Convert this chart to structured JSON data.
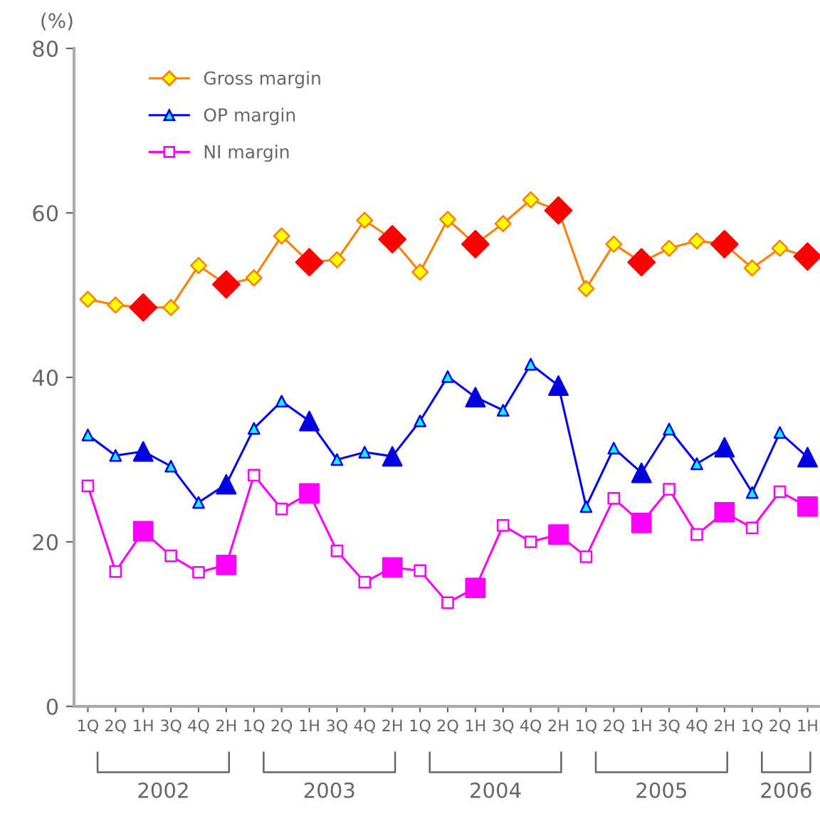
{
  "chart_data": {
    "type": "line",
    "ylabel": "(%)",
    "ylim": [
      0,
      80
    ],
    "yticks": [
      0,
      20,
      40,
      60,
      80
    ],
    "grid": false,
    "legend": "top left",
    "categories": [
      "1Q",
      "2Q",
      "1H",
      "3Q",
      "4Q",
      "2H",
      "1Q",
      "2Q",
      "1H",
      "3Q",
      "4Q",
      "2H",
      "1Q",
      "2Q",
      "1H",
      "3Q",
      "4Q",
      "2H",
      "1Q",
      "2Q",
      "1H",
      "3Q",
      "4Q",
      "2H",
      "1Q",
      "2Q",
      "1H"
    ],
    "annotations": [
      "2002",
      "2003",
      "2004",
      "2005",
      "2006"
    ],
    "series": [
      {
        "name": "Gross margin",
        "color": "#ff8000",
        "marker": "diamond",
        "values": [
          49.5,
          48.8,
          48.5,
          48.5,
          53.6,
          51.3,
          52.1,
          57.2,
          54.0,
          54.3,
          59.1,
          56.8,
          52.8,
          59.2,
          56.2,
          58.7,
          61.6,
          60.3,
          50.8,
          56.2,
          54.0,
          55.7,
          56.6,
          56.2,
          53.3,
          55.7,
          54.7
        ],
        "colors": [
          "#ffff00",
          "#ffff00",
          "#ff0000",
          "#ffff00",
          "#ffff00",
          "#ff0000",
          "#ffff00",
          "#ffff00",
          "#ff0000",
          "#ffff00",
          "#ffff00",
          "#ff0000",
          "#ffff00",
          "#ffff00",
          "#ff0000",
          "#ffff00",
          "#ffff00",
          "#ff0000",
          "#ffff00",
          "#ffff00",
          "#ff0000",
          "#ffff00",
          "#ffff00",
          "#ff0000",
          "#ffff00",
          "#ffff00",
          "#ff0000"
        ]
      },
      {
        "name": "OP margin",
        "color": "#0000ff",
        "marker": "triangle",
        "values": [
          33.0,
          30.5,
          31.0,
          29.2,
          24.8,
          27.0,
          33.8,
          37.1,
          34.7,
          30.0,
          30.9,
          30.4,
          34.7,
          40.1,
          37.6,
          36.0,
          41.6,
          39.0,
          24.3,
          31.4,
          28.4,
          33.7,
          29.5,
          31.5,
          26.0,
          33.3,
          30.3
        ],
        "colors": [
          "#00ffff",
          "#00ffff",
          "#0000e0",
          "#00ffff",
          "#00ffff",
          "#0000e0",
          "#00ffff",
          "#00ffff",
          "#0000e0",
          "#00ffff",
          "#00ffff",
          "#0000e0",
          "#00ffff",
          "#00ffff",
          "#0000e0",
          "#00ffff",
          "#00ffff",
          "#0000e0",
          "#00ffff",
          "#00ffff",
          "#0000e0",
          "#00ffff",
          "#00ffff",
          "#0000e0",
          "#00ffff",
          "#00ffff",
          "#0000e0"
        ]
      },
      {
        "name": "NI margin",
        "color": "#ff00ff",
        "marker": "square",
        "values": [
          26.8,
          16.4,
          21.3,
          18.3,
          16.3,
          17.2,
          28.1,
          24.0,
          25.9,
          18.9,
          15.1,
          16.9,
          16.5,
          12.6,
          14.4,
          22.0,
          20.0,
          20.9,
          18.2,
          25.3,
          22.3,
          26.4,
          20.9,
          23.6,
          21.7,
          26.1,
          24.3
        ],
        "colors": [
          "#ffffff",
          "#ffffff",
          "#ff00ff",
          "#ffffff",
          "#ffffff",
          "#ff00ff",
          "#ffffff",
          "#ffffff",
          "#ff00ff",
          "#ffffff",
          "#ffffff",
          "#ff00ff",
          "#ffffff",
          "#ffffff",
          "#ff00ff",
          "#ffffff",
          "#ffffff",
          "#ff00ff",
          "#ffffff",
          "#ffffff",
          "#ff00ff",
          "#ffffff",
          "#ffffff",
          "#ff00ff",
          "#ffffff",
          "#ffffff",
          "#ff00ff"
        ]
      }
    ]
  }
}
